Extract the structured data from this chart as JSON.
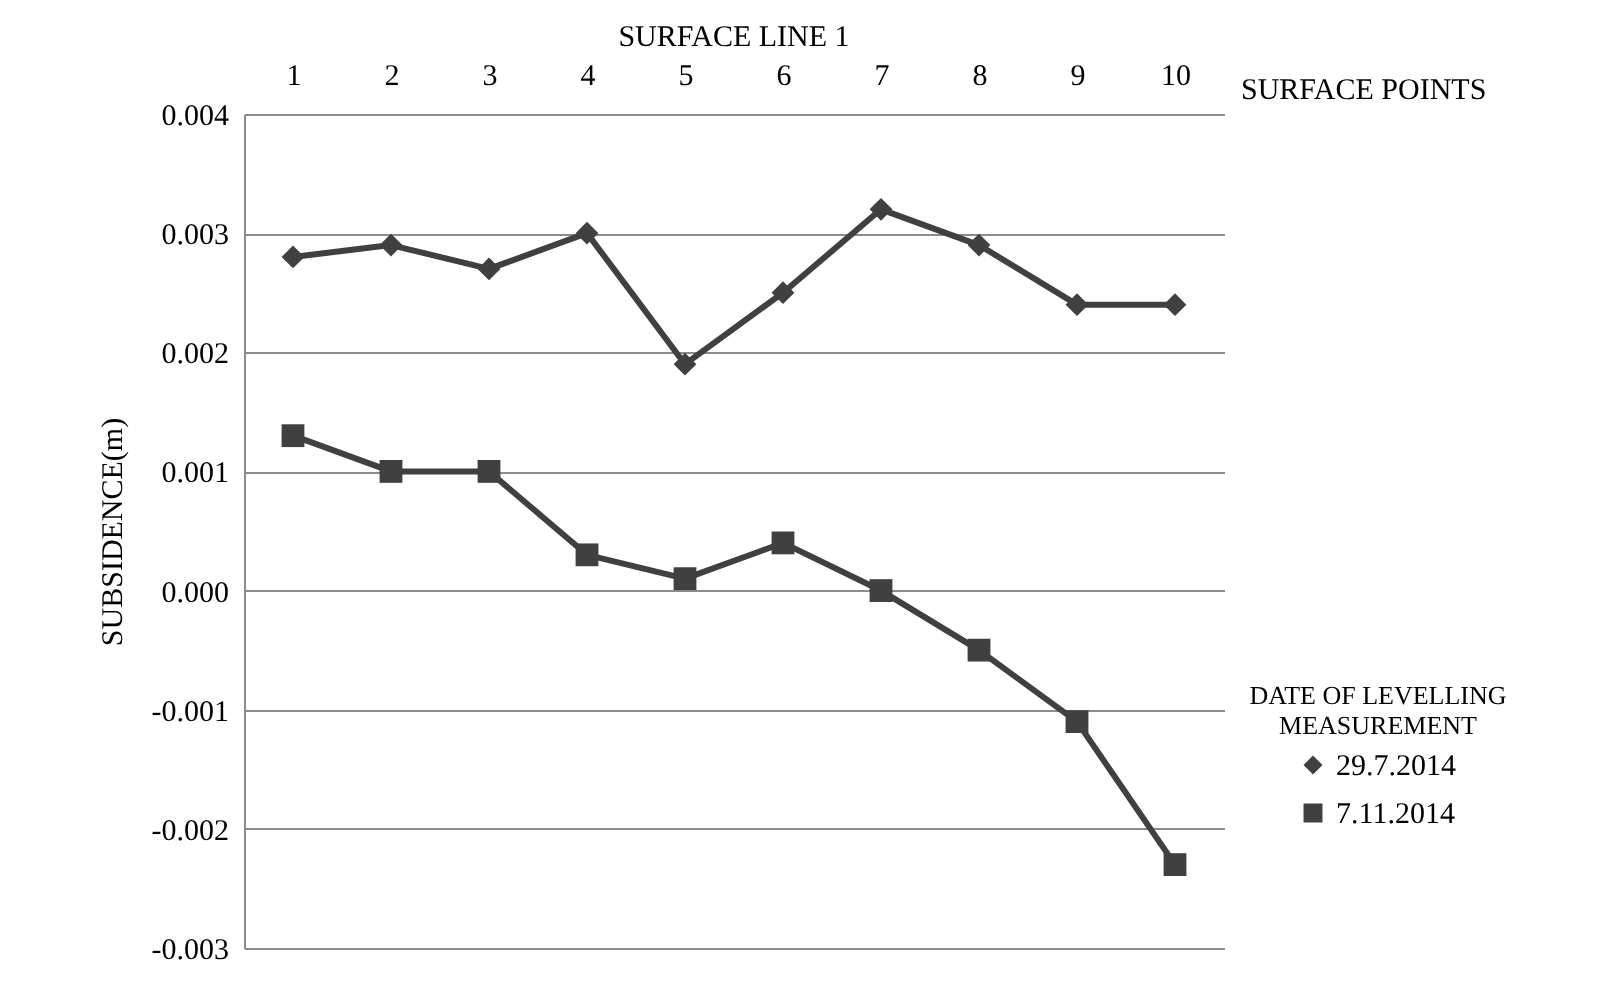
{
  "chart_data": {
    "type": "line",
    "title": "SURFACE LINE 1",
    "xlabel": "SURFACE POINTS",
    "ylabel": "SUBSIDENCE(m)",
    "legend_title": "DATE OF LEVELLING MEASUREMENT",
    "categories": [
      "1",
      "2",
      "3",
      "4",
      "5",
      "6",
      "7",
      "8",
      "9",
      "10"
    ],
    "series": [
      {
        "name": "29.7.2014",
        "color": "#404040",
        "marker": "diamond",
        "values": [
          0.0028,
          0.0029,
          0.0027,
          0.003,
          0.0019,
          0.0025,
          0.0032,
          0.0029,
          0.0024,
          0.0024
        ]
      },
      {
        "name": "7.11.2014",
        "color": "#404040",
        "marker": "square",
        "values": [
          0.0013,
          0.001,
          0.001,
          0.0003,
          0.0001,
          0.0004,
          0.0,
          -0.0005,
          -0.0011,
          -0.0023
        ]
      }
    ],
    "ylim": [
      -0.003,
      0.004
    ],
    "yticks": [
      -0.003,
      -0.002,
      -0.001,
      {
        "value": 0,
        "label": "0.000"
      },
      0.001,
      0.002,
      0.003,
      0.004
    ],
    "grid": "y",
    "legend": "bottom right",
    "line_style": "solid"
  }
}
